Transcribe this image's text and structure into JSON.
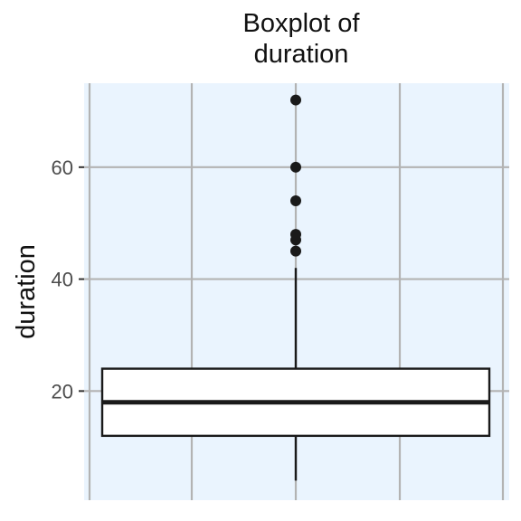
{
  "chart_data": {
    "type": "boxplot",
    "title": "Boxplot of\nduration",
    "title_lines": [
      "Boxplot of",
      "duration"
    ],
    "xlabel": "",
    "ylabel": "duration",
    "ylim": [
      0.5,
      75
    ],
    "y_ticks": [
      20,
      40,
      60
    ],
    "y_tick_labels": [
      "20",
      "40",
      "60"
    ],
    "grid": true,
    "legend": "none",
    "box": {
      "min": 4,
      "q1": 12,
      "median": 18,
      "q3": 24,
      "max": 42
    },
    "outliers": [
      45,
      47,
      48,
      54,
      60,
      72
    ],
    "colors": {
      "panel_background": "#eaf4fe",
      "grid": "#b3b3b3",
      "box_fill": "#ffffff",
      "box_stroke": "#1a1a1a",
      "point": "#1a1a1a"
    }
  }
}
